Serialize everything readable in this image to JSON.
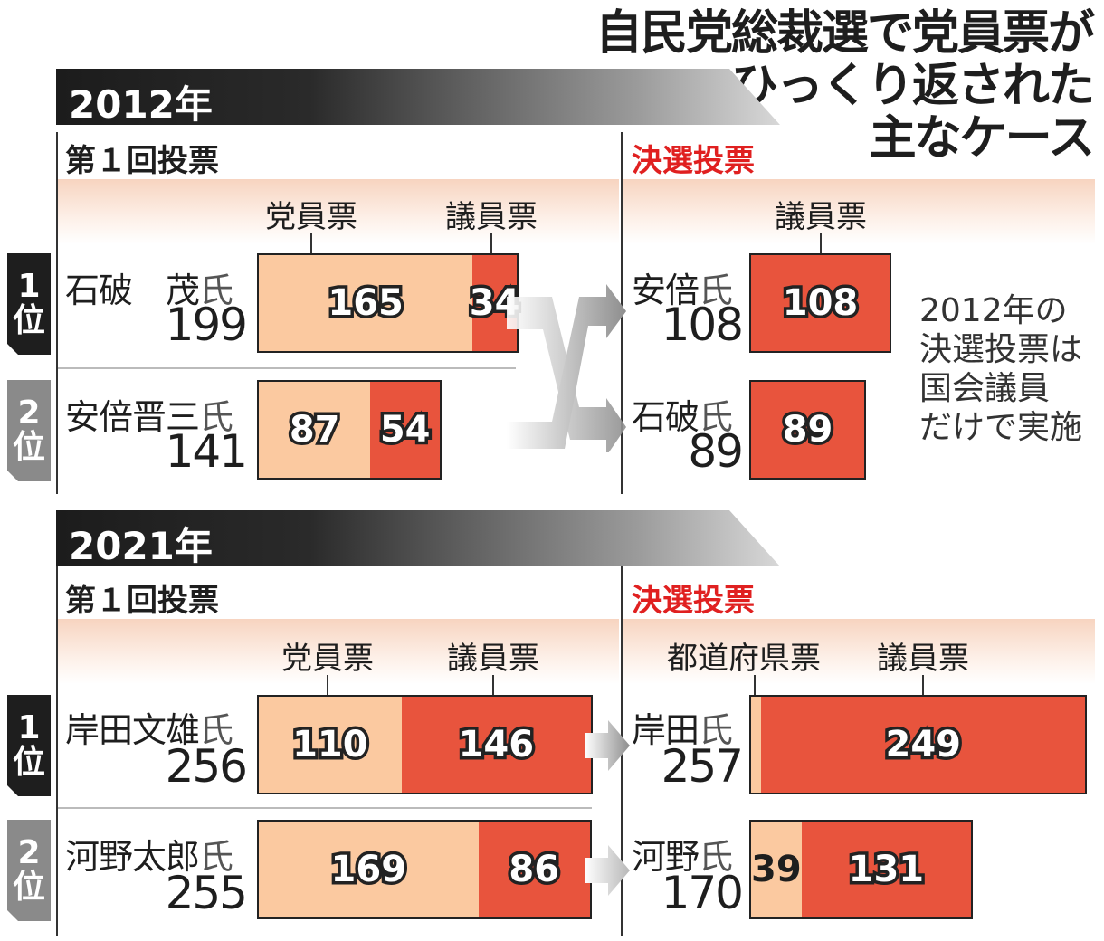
{
  "title": [
    "自民党総裁選で党員票が",
    "ひっくり返された",
    "主なケース"
  ],
  "note": [
    "2012年の",
    "決選投票は",
    "国会議員",
    "だけで実施"
  ],
  "rank_labels": {
    "first": [
      "1",
      "位"
    ],
    "second": [
      "2",
      "位"
    ]
  },
  "labels": {
    "first_round": "第１回投票",
    "runoff": "決選投票",
    "party_votes": "党員票",
    "member_votes": "議員票",
    "prefecture_votes": "都道府県票",
    "honorific": "氏"
  },
  "colors": {
    "party_votes": "#fbc9a0",
    "member_votes": "#e8543d",
    "runoff_heading": "#e02020"
  },
  "chart_data": [
    {
      "type": "bar",
      "title": "2012年",
      "first_round": [
        {
          "rank": 1,
          "name": "石破　茂",
          "total": 199,
          "party_votes": 165,
          "member_votes": 34
        },
        {
          "rank": 2,
          "name": "安倍晋三",
          "total": 141,
          "party_votes": 87,
          "member_votes": 54
        }
      ],
      "runoff": [
        {
          "name": "安倍",
          "total": 108,
          "member_votes": 108
        },
        {
          "name": "石破",
          "total": 89,
          "member_votes": 89
        }
      ]
    },
    {
      "type": "bar",
      "title": "2021年",
      "first_round": [
        {
          "rank": 1,
          "name": "岸田文雄",
          "total": 256,
          "party_votes": 110,
          "member_votes": 146
        },
        {
          "rank": 2,
          "name": "河野太郎",
          "total": 255,
          "party_votes": 169,
          "member_votes": 86
        }
      ],
      "runoff": [
        {
          "name": "岸田",
          "total": 257,
          "prefecture_votes": 8,
          "member_votes": 249
        },
        {
          "name": "河野",
          "total": 170,
          "prefecture_votes": 39,
          "member_votes": 131
        }
      ]
    }
  ]
}
